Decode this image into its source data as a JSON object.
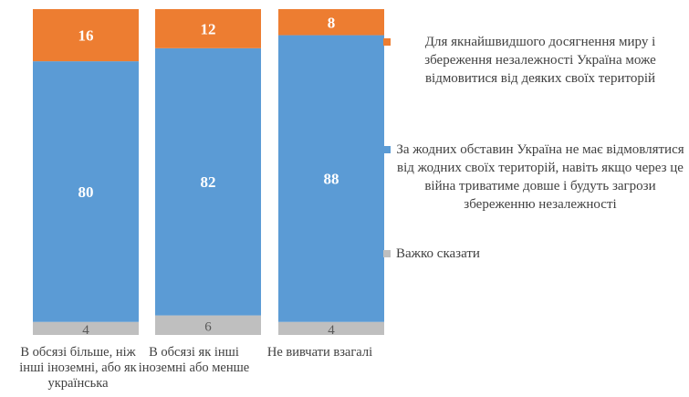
{
  "chart_data": {
    "type": "bar",
    "stacked": true,
    "percent": true,
    "categories": [
      "В обсязі більше, ніж інші іноземні, або як українська",
      "В обсязі як інші іноземні або менше",
      "Не вивчати взагалі"
    ],
    "series": [
      {
        "name": "Важко сказати",
        "values": [
          4,
          6,
          4
        ],
        "color": "#bfbfbf",
        "label_color": "#595959"
      },
      {
        "name": "За жодних обставин Україна не має відмовлятися від жодних своїх територій, навіть якщо через це війна триватиме довше і будуть загрози збереженню незалежності",
        "values": [
          80,
          82,
          88
        ],
        "color": "#5b9bd5",
        "label_color": "#ffffff"
      },
      {
        "name": "Для якнайшвидшого досягнення миру і збереження незалежності Україна може відмовитися від деяких своїх територій",
        "values": [
          16,
          12,
          8
        ],
        "color": "#ed7d31",
        "label_color": "#ffffff"
      }
    ],
    "ylim": [
      0,
      100
    ],
    "grid": false,
    "legend_position": "right"
  }
}
